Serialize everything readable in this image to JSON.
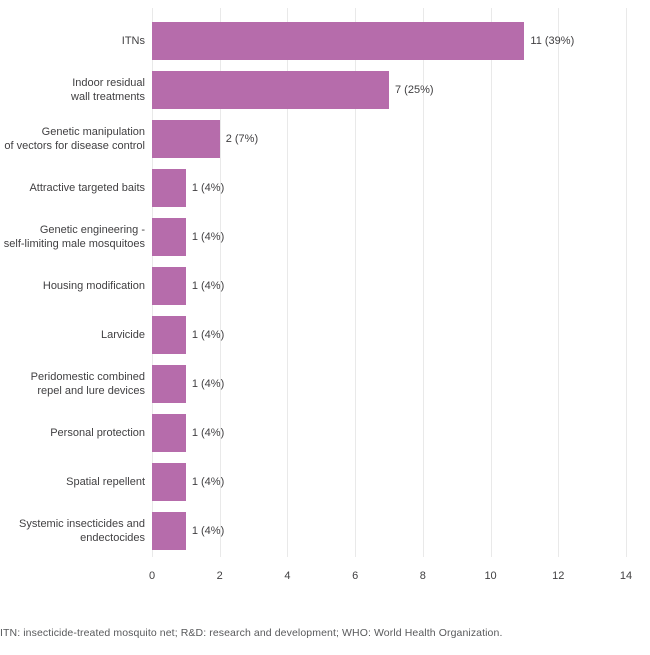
{
  "chart_data": {
    "type": "bar",
    "orientation": "horizontal",
    "title": "",
    "xlabel": "",
    "ylabel": "",
    "xlim": [
      0,
      14
    ],
    "xticks": [
      0,
      2,
      4,
      6,
      8,
      10,
      12,
      14
    ],
    "grid": "vertical",
    "legend": "none",
    "categories": [
      "ITNs",
      "Indoor residual wall treatments",
      "Genetic manipulation of vectors for disease control",
      "Attractive targeted baits",
      "Genetic engineering - self-limiting male mosquitoes",
      "Housing modification",
      "Larvicide",
      "Peridomestic combined repel and lure devices",
      "Personal protection",
      "Spatial repellent",
      "Systemic insecticides and endectocides"
    ],
    "categories_wrapped": [
      [
        "ITNs"
      ],
      [
        "Indoor residual",
        "wall treatments"
      ],
      [
        "Genetic manipulation",
        "of vectors for disease control"
      ],
      [
        "Attractive targeted baits"
      ],
      [
        "Genetic engineering -",
        "self-limiting male mosquitoes"
      ],
      [
        "Housing modification"
      ],
      [
        "Larvicide"
      ],
      [
        "Peridomestic combined",
        "repel and lure devices"
      ],
      [
        "Personal protection"
      ],
      [
        "Spatial repellent"
      ],
      [
        "Systemic insecticides and",
        "endectocides"
      ]
    ],
    "values": [
      11,
      7,
      2,
      1,
      1,
      1,
      1,
      1,
      1,
      1,
      1
    ],
    "value_labels": [
      "11 (39%)",
      "7 (25%)",
      "2 (7%)",
      "1 (4%)",
      "1 (4%)",
      "1 (4%)",
      "1 (4%)",
      "1 (4%)",
      "1 (4%)",
      "1 (4%)",
      "1 (4%)"
    ]
  },
  "footnote": "ITN: insecticide-treated mosquito net; R&D: research and development; WHO: World Health Organization.",
  "colors": {
    "bar": "#b66cab",
    "text": "#414042",
    "footnote_text": "#58595b",
    "gridline": "#e9e9e9",
    "background": "#ffffff"
  }
}
